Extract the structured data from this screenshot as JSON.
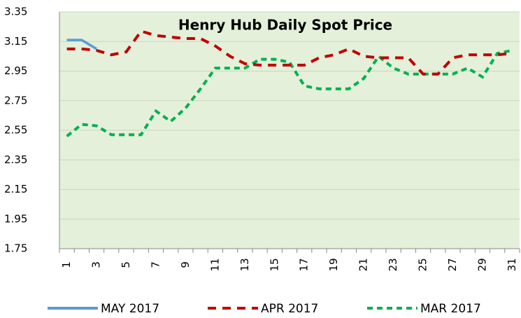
{
  "chart_data": {
    "type": "line",
    "title": "Henry Hub Daily Spot Price",
    "categories": [
      "1",
      null,
      "3",
      null,
      "5",
      null,
      "7",
      null,
      "9",
      null,
      "11",
      null,
      "13",
      null,
      "15",
      null,
      "17",
      null,
      "19",
      null,
      "21",
      null,
      "23",
      null,
      "25",
      null,
      "27",
      null,
      "29",
      null,
      "31"
    ],
    "series": [
      {
        "name": "MAY 2017",
        "color": "#5b9bd5",
        "dash": "solid",
        "values": [
          3.16,
          3.16,
          3.1,
          null,
          null,
          null,
          null,
          null,
          null,
          null,
          null,
          null,
          null,
          null,
          null,
          null,
          null,
          null,
          null,
          null,
          null,
          null,
          null,
          null,
          null,
          null,
          null,
          null,
          null,
          null,
          null
        ]
      },
      {
        "name": "APR 2017",
        "color": "#c00000",
        "dash": "long",
        "values": [
          3.1,
          3.1,
          3.09,
          3.06,
          3.08,
          3.22,
          3.19,
          3.18,
          3.17,
          3.17,
          3.12,
          3.05,
          3.0,
          2.99,
          2.99,
          2.99,
          2.99,
          3.04,
          3.06,
          3.1,
          3.05,
          3.04,
          3.04,
          3.04,
          2.93,
          2.93,
          3.04,
          3.06,
          3.06,
          3.06,
          3.07
        ]
      },
      {
        "name": "MAR 2017",
        "color": "#00b050",
        "dash": "short",
        "values": [
          2.51,
          2.59,
          2.58,
          2.52,
          2.52,
          2.52,
          2.68,
          2.61,
          2.7,
          2.83,
          2.97,
          2.97,
          2.97,
          3.03,
          3.03,
          3.01,
          2.85,
          2.83,
          2.83,
          2.83,
          2.9,
          3.05,
          2.97,
          2.93,
          2.93,
          2.93,
          2.93,
          2.97,
          2.91,
          3.07,
          3.09
        ]
      }
    ],
    "ylim": [
      1.75,
      3.35
    ],
    "yticks": [
      1.75,
      1.95,
      2.15,
      2.35,
      2.55,
      2.75,
      2.95,
      3.15,
      3.35
    ],
    "grid": true,
    "legend": "bottom",
    "background": "#e5f0da"
  }
}
